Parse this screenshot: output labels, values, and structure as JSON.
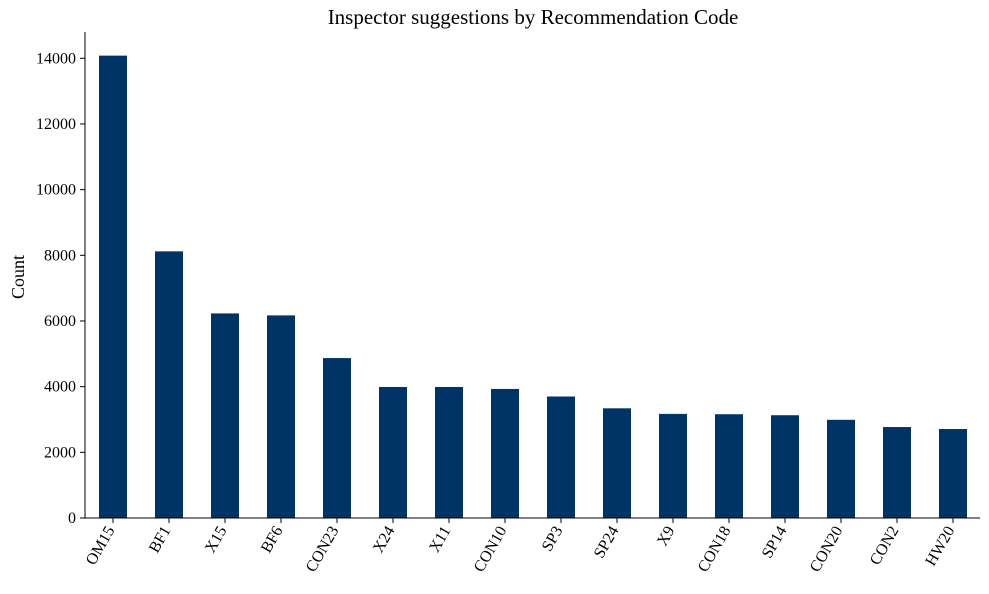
{
  "chart_data": {
    "type": "bar",
    "title": "Inspector suggestions by Recommendation Code",
    "xlabel": "",
    "ylabel": "Count",
    "categories": [
      "OM15",
      "BF1",
      "X15",
      "BF6",
      "CON23",
      "X24",
      "X11",
      "CON10",
      "SP3",
      "SP24",
      "X9",
      "CON18",
      "SP14",
      "CON20",
      "CON2",
      "HW20"
    ],
    "values": [
      14080,
      8120,
      6230,
      6170,
      4870,
      3990,
      3990,
      3930,
      3700,
      3340,
      3170,
      3160,
      3130,
      2990,
      2770,
      2710
    ],
    "ylim": [
      0,
      14800
    ],
    "yticks": [
      0,
      2000,
      4000,
      6000,
      8000,
      10000,
      12000,
      14000
    ],
    "grid": false,
    "bar_color": "#003366"
  }
}
